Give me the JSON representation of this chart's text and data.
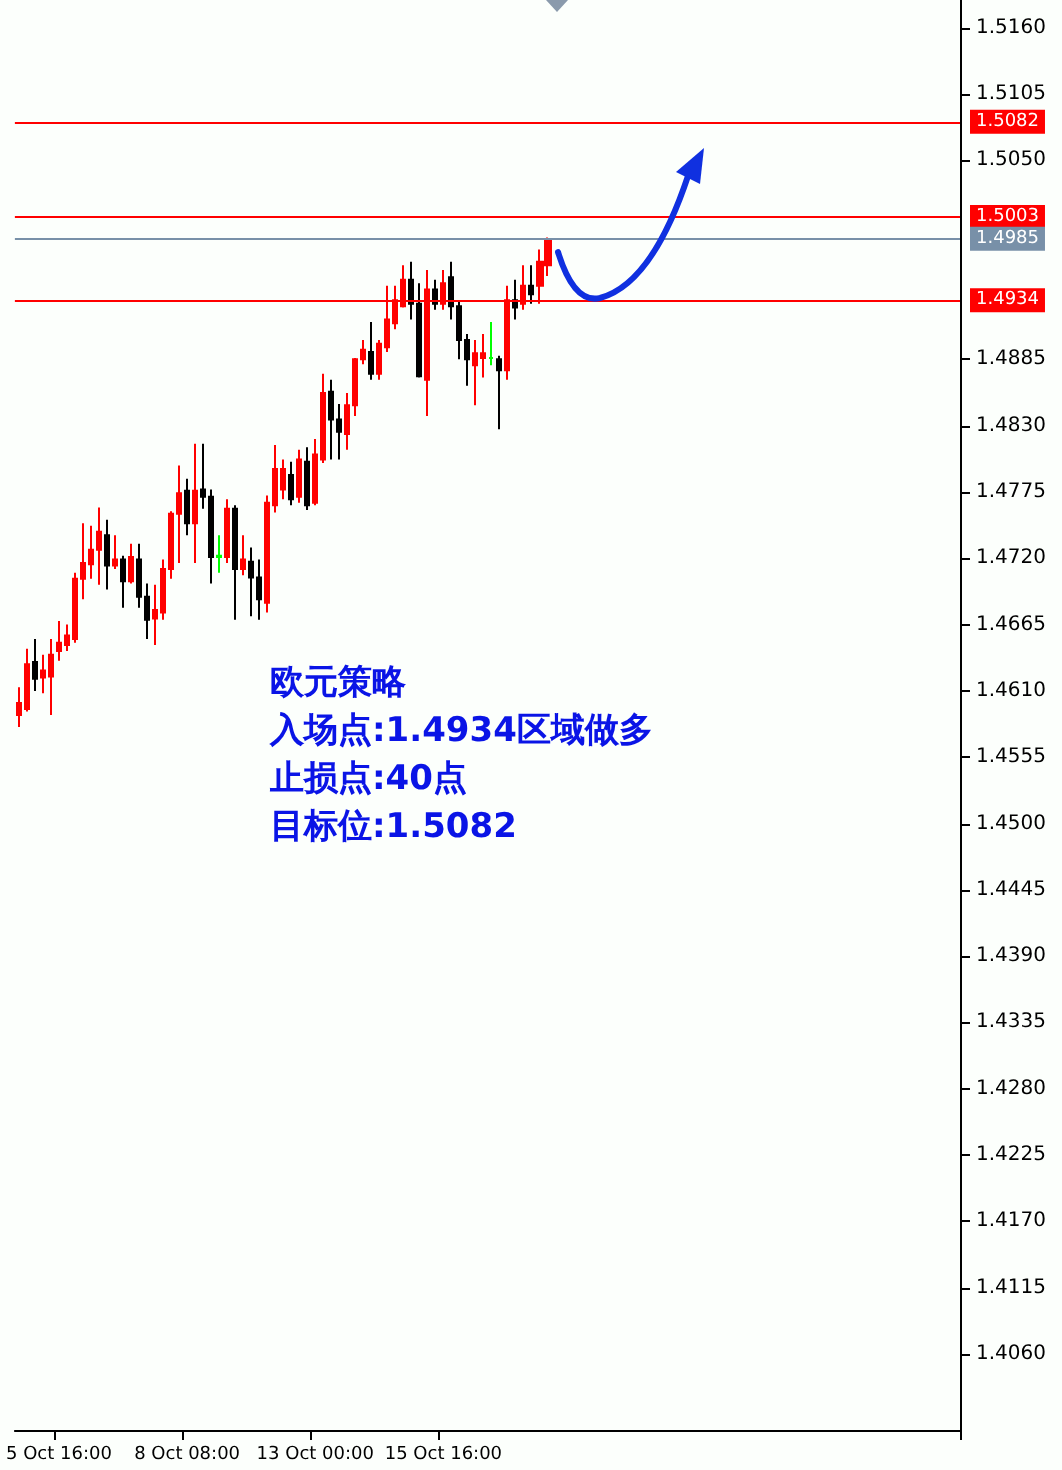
{
  "chart_data": {
    "type": "candlestick",
    "categories": [
      null,
      null,
      null,
      null,
      null,
      "5 Oct 16:00",
      null,
      null,
      null,
      null,
      null,
      null,
      null,
      null,
      null,
      null,
      null,
      null,
      null,
      null,
      null,
      "8 Oct 08:00",
      null,
      null,
      null,
      null,
      null,
      null,
      null,
      null,
      null,
      null,
      null,
      null,
      null,
      null,
      null,
      "13 Oct 00:00",
      null,
      null,
      null,
      null,
      null,
      null,
      null,
      null,
      null,
      null,
      null,
      null,
      null,
      null,
      null,
      "15 Oct 16:00",
      null,
      null,
      null,
      null,
      null,
      null,
      null,
      null,
      null,
      null,
      null,
      null,
      null,
      null,
      null,
      null,
      null,
      null,
      null,
      null,
      null,
      null,
      null,
      null,
      null,
      null,
      null,
      null,
      null,
      null,
      null,
      null,
      null,
      null,
      null,
      null,
      null,
      null,
      null,
      null,
      null,
      null,
      null,
      null,
      null,
      null,
      null,
      null,
      null,
      null,
      null,
      null,
      null,
      null,
      null,
      null,
      null,
      null,
      null,
      null,
      null,
      null,
      null,
      null
    ],
    "ohlc": [
      [
        1.459,
        1.4613,
        1.458,
        1.46
      ],
      [
        1.4595,
        1.4645,
        1.4593,
        1.4632
      ],
      [
        1.4634,
        1.4653,
        1.461,
        1.462
      ],
      [
        1.4621,
        1.464,
        1.4608,
        1.4627
      ],
      [
        1.4622,
        1.4653,
        1.459,
        1.464
      ],
      [
        1.4643,
        1.4668,
        1.4635,
        1.465
      ],
      [
        1.4648,
        1.4665,
        1.4643,
        1.4656
      ],
      [
        1.4653,
        1.4708,
        1.465,
        1.4703
      ],
      [
        1.4703,
        1.4749,
        1.4686,
        1.4716
      ],
      [
        1.4715,
        1.4747,
        1.4703,
        1.4727
      ],
      [
        1.4727,
        1.4762,
        1.4698,
        1.4742
      ],
      [
        1.4739,
        1.4752,
        1.4694,
        1.4714
      ],
      [
        1.4714,
        1.4739,
        1.4711,
        1.4719
      ],
      [
        1.4719,
        1.4722,
        1.4679,
        1.4701
      ],
      [
        1.4701,
        1.4732,
        1.4699,
        1.4721
      ],
      [
        1.4719,
        1.4732,
        1.4679,
        1.4688
      ],
      [
        1.4688,
        1.4699,
        1.4653,
        1.4669
      ],
      [
        1.467,
        1.4698,
        1.4648,
        1.4677
      ],
      [
        1.4675,
        1.4719,
        1.4669,
        1.4711
      ],
      [
        1.4711,
        1.4759,
        1.4703,
        1.4757
      ],
      [
        1.4757,
        1.4797,
        1.4716,
        1.4774
      ],
      [
        1.4776,
        1.4786,
        1.4739,
        1.4749
      ],
      [
        1.4749,
        1.4815,
        1.4716,
        1.4776
      ],
      [
        1.4777,
        1.4815,
        1.4761,
        1.4771
      ],
      [
        1.4771,
        1.4777,
        1.4699,
        1.4721
      ],
      [
        1.4721,
        1.4739,
        1.4708,
        1.4722
      ],
      [
        1.4721,
        1.4769,
        1.4716,
        1.4761
      ],
      [
        1.4761,
        1.4764,
        1.4669,
        1.4711
      ],
      [
        1.4711,
        1.4739,
        1.4706,
        1.4719
      ],
      [
        1.4717,
        1.4729,
        1.4672,
        1.4704
      ],
      [
        1.4704,
        1.4719,
        1.4669,
        1.4686
      ],
      [
        1.4683,
        1.4772,
        1.4675,
        1.4766
      ],
      [
        1.4764,
        1.4814,
        1.4758,
        1.4794
      ],
      [
        1.4777,
        1.4802,
        1.4769,
        1.4794
      ],
      [
        1.4789,
        1.48,
        1.4764,
        1.4769
      ],
      [
        1.4771,
        1.481,
        1.4766,
        1.4802
      ],
      [
        1.48,
        1.4812,
        1.476,
        1.4764
      ],
      [
        1.4766,
        1.4819,
        1.4764,
        1.4806
      ],
      [
        1.4802,
        1.4873,
        1.4799,
        1.4857
      ],
      [
        1.4858,
        1.4868,
        1.4802,
        1.4835
      ],
      [
        1.4835,
        1.4848,
        1.4802,
        1.4825
      ],
      [
        1.4823,
        1.4857,
        1.481,
        1.4847
      ],
      [
        1.4847,
        1.4886,
        1.4838,
        1.4885
      ],
      [
        1.4885,
        1.4901,
        1.4881,
        1.4893
      ],
      [
        1.4891,
        1.4916,
        1.4868,
        1.4873
      ],
      [
        1.4873,
        1.4901,
        1.4868,
        1.4898
      ],
      [
        1.4895,
        1.4946,
        1.4891,
        1.4918
      ],
      [
        1.4915,
        1.4946,
        1.491,
        1.4934
      ],
      [
        1.4929,
        1.4963,
        1.4928,
        1.4951
      ],
      [
        1.4951,
        1.4966,
        1.4918,
        1.4931
      ],
      [
        1.4931,
        1.4948,
        1.487,
        1.4871
      ],
      [
        1.4868,
        1.4959,
        1.4838,
        1.4943
      ],
      [
        1.4943,
        1.4951,
        1.4926,
        1.4931
      ],
      [
        1.4931,
        1.4959,
        1.4926,
        1.4948
      ],
      [
        1.4953,
        1.4966,
        1.4918,
        1.4929
      ],
      [
        1.4929,
        1.4934,
        1.4885,
        1.4901
      ],
      [
        1.4901,
        1.4906,
        1.4863,
        1.4885
      ],
      [
        1.488,
        1.4901,
        1.4847,
        1.489
      ],
      [
        1.4886,
        1.4906,
        1.487,
        1.489
      ],
      [
        1.4886,
        1.4916,
        1.488,
        1.4886
      ],
      [
        1.4885,
        1.4888,
        1.4827,
        1.4876
      ],
      [
        1.4876,
        1.4946,
        1.4868,
        1.4934
      ],
      [
        1.4934,
        1.4951,
        1.4918,
        1.4928
      ],
      [
        1.4931,
        1.4963,
        1.4926,
        1.4946
      ],
      [
        1.4946,
        1.4963,
        1.4931,
        1.4939
      ],
      [
        1.4946,
        1.4976,
        1.4931,
        1.4966
      ],
      [
        1.4963,
        1.4986,
        1.4954,
        1.4984
      ],
      null,
      null,
      null,
      null,
      null,
      null,
      null,
      null,
      null,
      null,
      null,
      null,
      null,
      null,
      null,
      null,
      null,
      null,
      null,
      null,
      null,
      null,
      null,
      null,
      null,
      null,
      null,
      null,
      null,
      null,
      null,
      null,
      null,
      null,
      null,
      null,
      null,
      null,
      null,
      null,
      null,
      null,
      null,
      null,
      null,
      null,
      null,
      null,
      null,
      null,
      null
    ],
    "colors": [
      "#ff0000",
      "#ff0000",
      "#000000",
      "#ff0000",
      "#ff0000",
      "#ff0000",
      "#ff0000",
      "#ff0000",
      "#ff0000",
      "#ff0000",
      "#ff0000",
      "#000000",
      "#ff0000",
      "#000000",
      "#ff0000",
      "#000000",
      "#000000",
      "#ff0000",
      "#ff0000",
      "#ff0000",
      "#ff0000",
      "#000000",
      "#ff0000",
      "#000000",
      "#000000",
      "#00ff00",
      "#ff0000",
      "#000000",
      "#ff0000",
      "#000000",
      "#000000",
      "#ff0000",
      "#ff0000",
      "#ff0000",
      "#000000",
      "#ff0000",
      "#000000",
      "#ff0000",
      "#ff0000",
      "#000000",
      "#000000",
      "#ff0000",
      "#ff0000",
      "#ff0000",
      "#000000",
      "#ff0000",
      "#ff0000",
      "#ff0000",
      "#ff0000",
      "#000000",
      "#000000",
      "#ff0000",
      "#000000",
      "#ff0000",
      "#000000",
      "#000000",
      "#000000",
      "#ff0000",
      "#ff0000",
      "#00ff00",
      "#000000",
      "#ff0000",
      "#000000",
      "#ff0000",
      "#000000",
      "#ff0000",
      "#ff0000",
      null,
      null,
      null,
      null,
      null,
      null,
      null,
      null,
      null,
      null,
      null,
      null,
      null,
      null,
      null,
      null,
      null,
      null,
      null,
      null,
      null,
      null,
      null,
      null,
      null,
      null,
      null,
      null,
      null,
      null,
      null,
      null,
      null,
      null,
      null,
      null,
      null,
      null,
      null,
      null,
      null,
      null,
      null,
      null,
      null,
      null,
      null,
      null,
      null,
      null,
      null
    ],
    "ylim": [
      1.3997,
      1.5183
    ],
    "yticks": [
      {
        "value": 1.406,
        "label": "1.4060"
      },
      {
        "value": 1.4115,
        "label": "1.4115"
      },
      {
        "value": 1.417,
        "label": "1.4170"
      },
      {
        "value": 1.4225,
        "label": "1.4225"
      },
      {
        "value": 1.428,
        "label": "1.4280"
      },
      {
        "value": 1.4335,
        "label": "1.4335"
      },
      {
        "value": 1.439,
        "label": "1.4390"
      },
      {
        "value": 1.4445,
        "label": "1.4445"
      },
      {
        "value": 1.45,
        "label": "1.4500"
      },
      {
        "value": 1.4555,
        "label": "1.4555"
      },
      {
        "value": 1.461,
        "label": "1.4610"
      },
      {
        "value": 1.4665,
        "label": "1.4665"
      },
      {
        "value": 1.472,
        "label": "1.4720"
      },
      {
        "value": 1.4775,
        "label": "1.4775"
      },
      {
        "value": 1.483,
        "label": "1.4830"
      },
      {
        "value": 1.4885,
        "label": "1.4885"
      },
      {
        "value": 1.505,
        "label": "1.5050"
      },
      {
        "value": 1.5105,
        "label": "1.5105"
      },
      {
        "value": 1.516,
        "label": "1.5160"
      }
    ],
    "ref_lines": [
      {
        "axis": "y",
        "value": 1.5082,
        "label": "1.5082",
        "color": "#ff0000"
      },
      {
        "axis": "y",
        "value": 1.5003,
        "label": "1.5003",
        "color": "#ff0000"
      },
      {
        "axis": "y",
        "value": 1.4985,
        "label": "1.4985",
        "color": "#7890a8"
      },
      {
        "axis": "y",
        "value": 1.4934,
        "label": "1.4934",
        "color": "#ff0000"
      }
    ],
    "annotations": [
      "欧元策略",
      "入场点:1.4934区域做多",
      "止损点:40点",
      "目标位:1.5082"
    ]
  }
}
